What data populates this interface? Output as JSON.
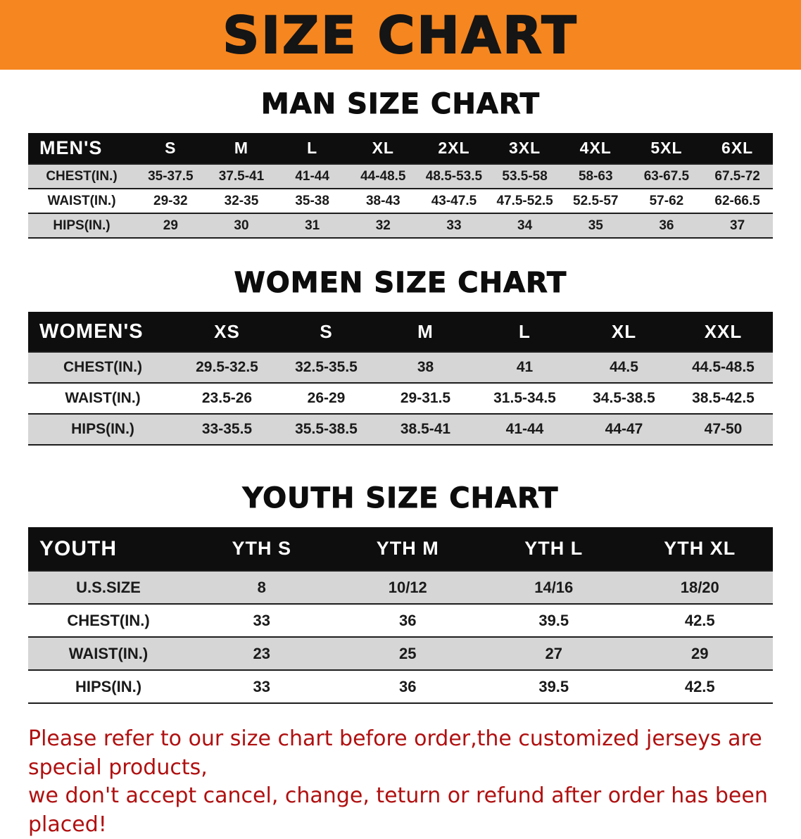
{
  "banner": {
    "title": "SIZE CHART",
    "bg_color": "#f6861f"
  },
  "sections": [
    {
      "id": "men",
      "heading": "MAN SIZE CHART",
      "table": {
        "header": [
          "MEN'S",
          "S",
          "M",
          "L",
          "XL",
          "2XL",
          "3XL",
          "4XL",
          "5XL",
          "6XL"
        ],
        "rows": [
          [
            "CHEST(IN.)",
            "35-37.5",
            "37.5-41",
            "41-44",
            "44-48.5",
            "48.5-53.5",
            "53.5-58",
            "58-63",
            "63-67.5",
            "67.5-72"
          ],
          [
            "WAIST(IN.)",
            "29-32",
            "32-35",
            "35-38",
            "38-43",
            "43-47.5",
            "47.5-52.5",
            "52.5-57",
            "57-62",
            "62-66.5"
          ],
          [
            "HIPS(IN.)",
            "29",
            "30",
            "31",
            "32",
            "33",
            "34",
            "35",
            "36",
            "37"
          ]
        ]
      }
    },
    {
      "id": "women",
      "heading": "WOMEN SIZE CHART",
      "table": {
        "header": [
          "WOMEN'S",
          "XS",
          "S",
          "M",
          "L",
          "XL",
          "XXL"
        ],
        "rows": [
          [
            "CHEST(IN.)",
            "29.5-32.5",
            "32.5-35.5",
            "38",
            "41",
            "44.5",
            "44.5-48.5"
          ],
          [
            "WAIST(IN.)",
            "23.5-26",
            "26-29",
            "29-31.5",
            "31.5-34.5",
            "34.5-38.5",
            "38.5-42.5"
          ],
          [
            "HIPS(IN.)",
            "33-35.5",
            "35.5-38.5",
            "38.5-41",
            "41-44",
            "44-47",
            "47-50"
          ]
        ]
      }
    },
    {
      "id": "youth",
      "heading": "YOUTH SIZE CHART",
      "table": {
        "header": [
          "YOUTH",
          "YTH S",
          "YTH M",
          "YTH L",
          "YTH XL"
        ],
        "rows": [
          [
            "U.S.SIZE",
            "8",
            "10/12",
            "14/16",
            "18/20"
          ],
          [
            "CHEST(IN.)",
            "33",
            "36",
            "39.5",
            "42.5"
          ],
          [
            "WAIST(IN.)",
            "23",
            "25",
            "27",
            "29"
          ],
          [
            "HIPS(IN.)",
            "33",
            "36",
            "39.5",
            "42.5"
          ]
        ]
      }
    }
  ],
  "footer": {
    "line1": "Please refer to our size chart before order,the customized jerseys are special products,",
    "line2": "we don't accept cancel, change, teturn or refund after order has been placed!",
    "color": "#b01010"
  }
}
